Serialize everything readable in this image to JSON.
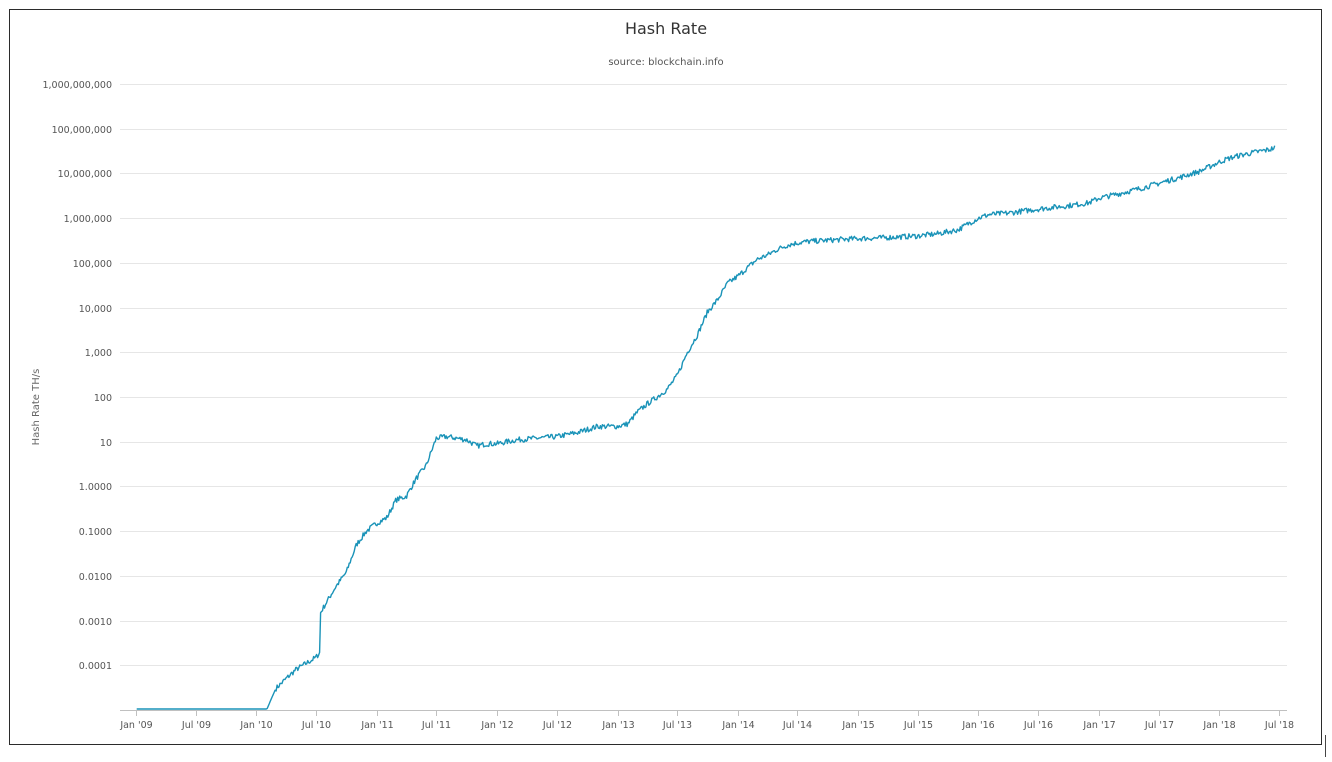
{
  "chart_data": {
    "type": "line",
    "title": "Hash Rate",
    "subtitle": "source: blockchain.info",
    "xlabel": "",
    "ylabel": "Hash Rate TH/s",
    "yscale": "log",
    "ylim": [
      1e-05,
      1000000000
    ],
    "xlim": [
      "2009-01-01",
      "2018-07-01"
    ],
    "grid": true,
    "legend": "none",
    "line_color": "#1a93b8",
    "ytick_values": [
      0.0001,
      0.001,
      0.01,
      0.1,
      1,
      10,
      100,
      1000,
      10000,
      100000,
      1000000,
      10000000,
      100000000,
      1000000000
    ],
    "ytick_labels": [
      "0.0001",
      "0.0010",
      "0.0100",
      "0.1000",
      "1.0000",
      "10",
      "100",
      "1,000",
      "10,000",
      "100,000",
      "1,000,000",
      "10,000,000",
      "100,000,000",
      "1,000,000,000"
    ],
    "xticks": [
      "Jan '09",
      "Jul '09",
      "Jan '10",
      "Jul '10",
      "Jan '11",
      "Jul '11",
      "Jan '12",
      "Jul '12",
      "Jan '13",
      "Jul '13",
      "Jan '14",
      "Jul '14",
      "Jan '15",
      "Jul '15",
      "Jan '16",
      "Jul '16",
      "Jan '17",
      "Jul '17",
      "Jan '18",
      "Jul '18"
    ],
    "xtick_dates": [
      "2009-01-01",
      "2009-07-01",
      "2010-01-01",
      "2010-07-01",
      "2011-01-01",
      "2011-07-01",
      "2012-01-01",
      "2012-07-01",
      "2013-01-01",
      "2013-07-01",
      "2014-01-01",
      "2014-07-01",
      "2015-01-01",
      "2015-07-01",
      "2016-01-01",
      "2016-07-01",
      "2017-01-01",
      "2017-07-01",
      "2018-01-01",
      "2018-07-01"
    ],
    "series": [
      {
        "x": [
          "2009-01-03",
          "2009-04-01",
          "2009-08-01",
          "2009-12-01",
          "2010-01-05",
          "2010-02-01",
          "2010-03-01",
          "2010-04-01",
          "2010-05-01",
          "2010-06-01",
          "2010-07-01",
          "2010-07-14",
          "2010-07-15",
          "2010-08-01",
          "2010-09-01",
          "2010-10-01",
          "2010-11-01",
          "2010-12-01",
          "2011-01-01",
          "2011-02-01",
          "2011-03-01",
          "2011-04-01",
          "2011-05-01",
          "2011-06-01",
          "2011-07-01",
          "2011-08-01",
          "2011-09-01",
          "2011-10-01",
          "2011-11-01",
          "2011-12-01",
          "2012-01-01",
          "2012-03-01",
          "2012-05-01",
          "2012-07-01",
          "2012-09-01",
          "2012-11-01",
          "2013-01-01",
          "2013-02-01",
          "2013-03-01",
          "2013-04-01",
          "2013-05-01",
          "2013-06-01",
          "2013-07-01",
          "2013-08-01",
          "2013-09-01",
          "2013-10-01",
          "2013-11-01",
          "2013-12-01",
          "2014-01-01",
          "2014-02-01",
          "2014-03-01",
          "2014-04-01",
          "2014-05-01",
          "2014-06-01",
          "2014-07-01",
          "2014-08-01",
          "2014-09-01",
          "2014-10-01",
          "2014-11-01",
          "2014-12-01",
          "2015-01-01",
          "2015-03-01",
          "2015-05-01",
          "2015-07-01",
          "2015-09-01",
          "2015-11-01",
          "2015-12-01",
          "2016-01-01",
          "2016-02-01",
          "2016-04-01",
          "2016-06-01",
          "2016-08-01",
          "2016-10-01",
          "2016-12-01",
          "2017-01-01",
          "2017-03-01",
          "2017-05-01",
          "2017-07-01",
          "2017-08-01",
          "2017-09-01",
          "2017-10-01",
          "2017-11-01",
          "2017-12-01",
          "2018-01-01",
          "2018-02-01",
          "2018-03-01",
          "2018-04-01",
          "2018-05-01",
          "2018-06-01",
          "2018-06-20"
        ],
        "y": [
          7e-06,
          7e-06,
          7e-06,
          7e-06,
          7e-06,
          1e-05,
          3e-05,
          5e-05,
          8e-05,
          0.00011,
          0.00015,
          0.0002,
          0.0015,
          0.0025,
          0.006,
          0.012,
          0.05,
          0.1,
          0.15,
          0.2,
          0.5,
          0.6,
          1.5,
          3,
          12,
          13,
          12,
          11,
          8,
          9,
          9,
          11,
          12,
          13,
          16,
          22,
          22,
          25,
          45,
          70,
          100,
          150,
          300,
          1000,
          2500,
          8000,
          15000,
          35000,
          50000,
          80000,
          120000,
          150000,
          200000,
          250000,
          280000,
          300000,
          310000,
          320000,
          330000,
          340000,
          350000,
          360000,
          380000,
          400000,
          450000,
          550000,
          750000,
          1000000,
          1200000,
          1300000,
          1500000,
          1700000,
          1900000,
          2200000,
          2800000,
          3500000,
          4500000,
          6000000,
          7000000,
          8000000,
          9500000,
          11000000,
          14000000,
          18000000,
          22000000,
          25000000,
          28000000,
          31000000,
          34000000,
          38000000
        ]
      }
    ]
  }
}
